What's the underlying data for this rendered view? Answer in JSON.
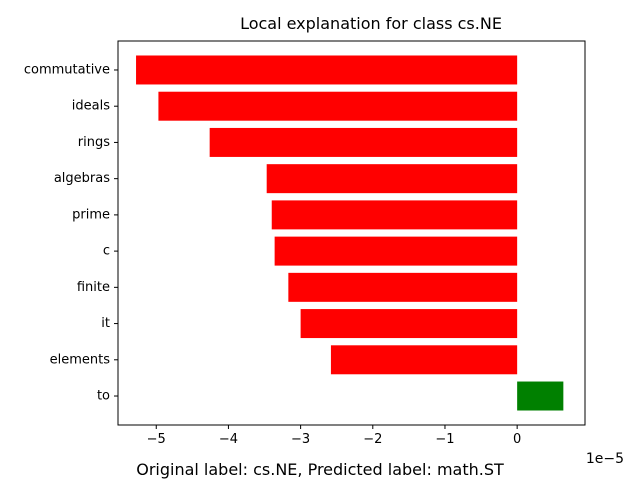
{
  "chart_data": {
    "type": "bar",
    "orientation": "horizontal",
    "title": "Local explanation for class cs.NE",
    "xlabel": "Original label: cs.NE, Predicted label: math.ST",
    "ylabel": "",
    "scale_note": "1e−5",
    "categories": [
      "commutative",
      "ideals",
      "rings",
      "algebras",
      "prime",
      "c",
      "finite",
      "it",
      "elements",
      "to"
    ],
    "values": [
      -5.28,
      -4.97,
      -4.26,
      -3.47,
      -3.4,
      -3.36,
      -3.17,
      -3.0,
      -2.58,
      0.64
    ],
    "value_multiplier": 1e-05,
    "xlim": [
      -5.53,
      0.94
    ],
    "xticks": [
      -5,
      -4,
      -3,
      -2,
      -1,
      0
    ],
    "xtick_labels": [
      "−5",
      "−4",
      "−3",
      "−2",
      "−1",
      "0"
    ],
    "colors": {
      "negative": "#ff0000",
      "positive": "#008000"
    },
    "grid": false,
    "legend": "none"
  }
}
